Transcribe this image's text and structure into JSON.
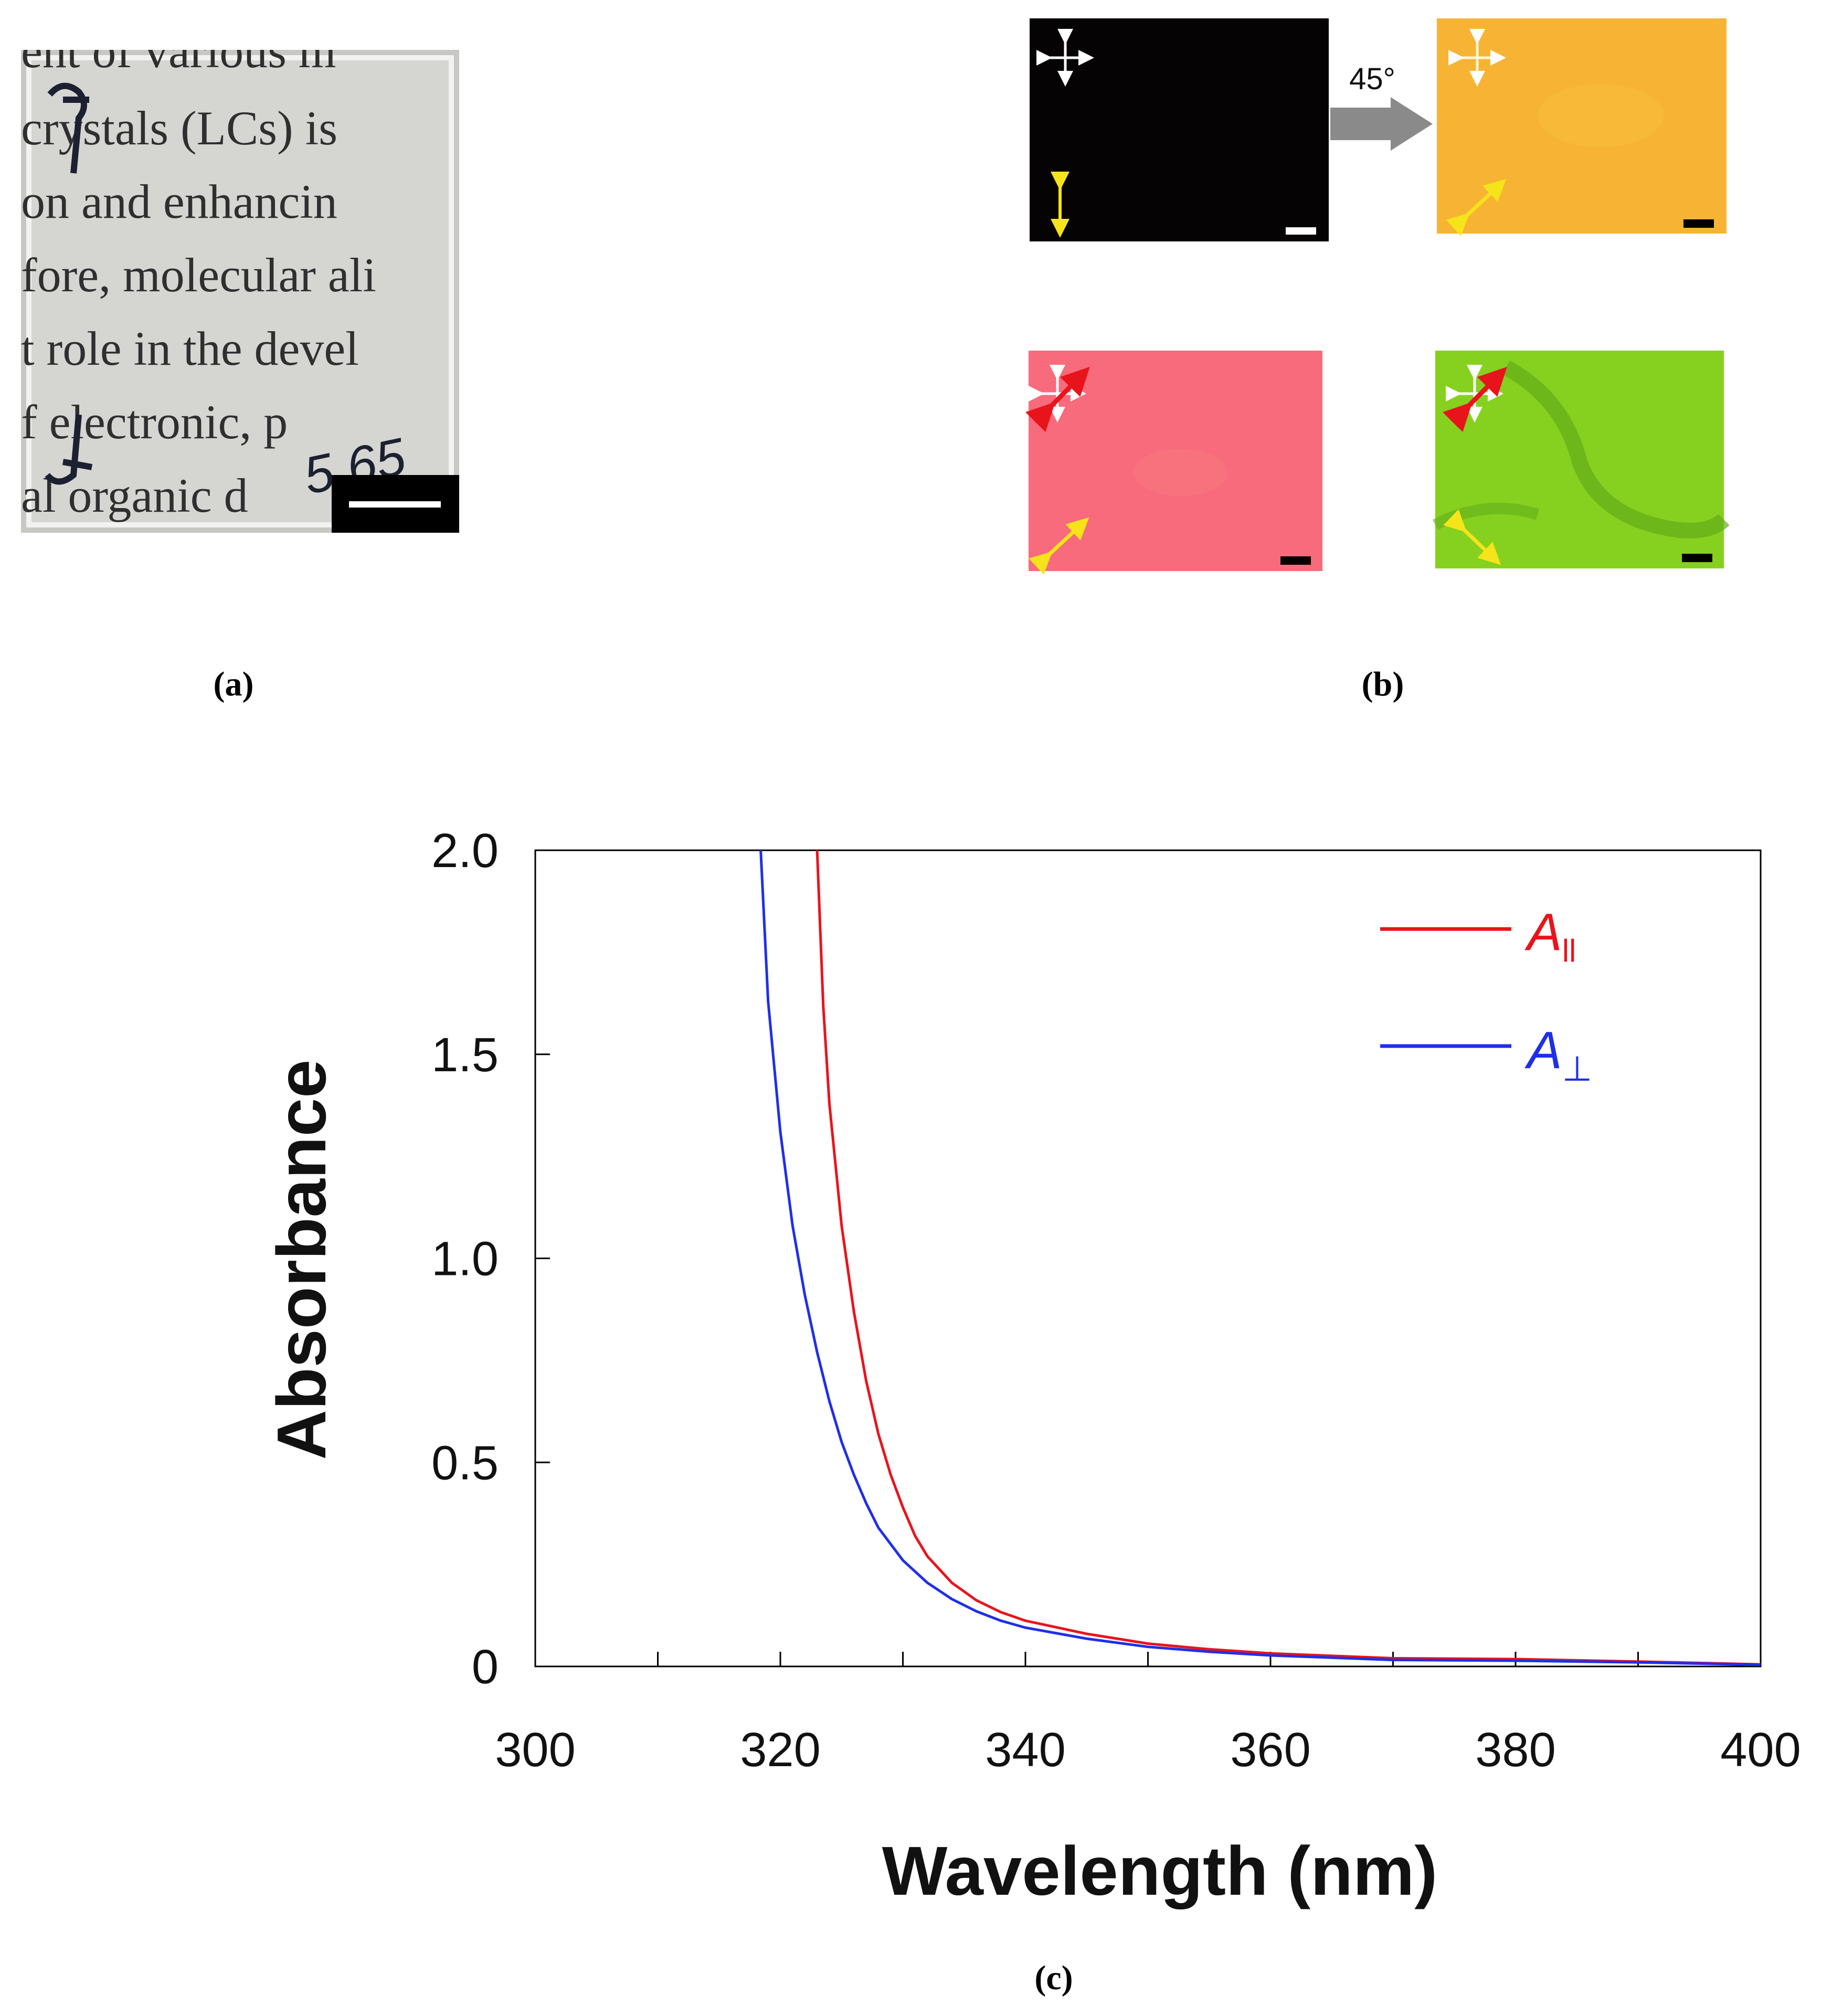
{
  "panels": {
    "a": {
      "label": "(a)",
      "photo_text_lines": [
        "ent of various m",
        "crystals (LCs) is",
        "on and enhancin",
        "fore, molecular ali",
        "t role in the devel",
        "f electronic, p",
        "al organic d"
      ],
      "handwriting": "5.65"
    },
    "b": {
      "label": "(b)",
      "rotation_label": "45°",
      "images": [
        "black-crossed",
        "orange-45deg",
        "pink-sample",
        "green-sample"
      ]
    },
    "c": {
      "label": "(c)"
    }
  },
  "chart_data": {
    "type": "line",
    "title": "",
    "xlabel": "Wavelength (nm)",
    "ylabel": "Absorbance",
    "xlim": [
      300,
      400
    ],
    "ylim": [
      0,
      2.0
    ],
    "x_ticks": [
      300,
      320,
      340,
      360,
      380,
      400
    ],
    "x_minor_ticks": [
      310,
      330,
      350,
      370,
      390
    ],
    "y_ticks": [
      0,
      0.5,
      1.0,
      1.5,
      2.0
    ],
    "y_tick_labels": [
      "0",
      "0.5",
      "1.0",
      "1.5",
      "2.0"
    ],
    "legend_position": "top-right",
    "series": [
      {
        "name": "A",
        "subscript": "ll",
        "color": "#e8141c",
        "x": [
          323.0,
          323.5,
          324,
          325,
          326,
          327,
          328,
          329,
          330,
          331,
          332,
          334,
          336,
          338,
          340,
          345,
          350,
          355,
          360,
          370,
          380,
          390,
          400
        ],
        "y": [
          2.0,
          1.62,
          1.38,
          1.08,
          0.87,
          0.7,
          0.57,
          0.47,
          0.39,
          0.32,
          0.27,
          0.205,
          0.162,
          0.133,
          0.112,
          0.08,
          0.056,
          0.042,
          0.032,
          0.02,
          0.018,
          0.012,
          0.005
        ]
      },
      {
        "name": "A",
        "subscript": "⊥",
        "color": "#1f2fe8",
        "x": [
          318.4,
          319,
          320,
          321,
          322,
          323,
          324,
          325,
          326,
          327,
          328,
          330,
          332,
          334,
          336,
          338,
          340,
          345,
          350,
          355,
          360,
          370,
          380,
          390,
          400
        ],
        "y": [
          2.0,
          1.63,
          1.31,
          1.08,
          0.91,
          0.77,
          0.65,
          0.55,
          0.47,
          0.4,
          0.34,
          0.26,
          0.205,
          0.165,
          0.135,
          0.112,
          0.095,
          0.068,
          0.048,
          0.036,
          0.027,
          0.016,
          0.014,
          0.01,
          0.004
        ]
      }
    ]
  }
}
